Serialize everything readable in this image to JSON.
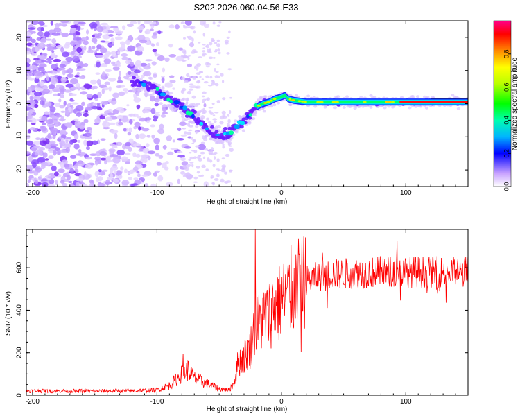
{
  "figure_title": "S202.2026.060.04.56.E33",
  "chart_data": [
    {
      "type": "heatmap",
      "name": "spectrogram",
      "xlabel": "Height of straight line (km)",
      "ylabel": "Frequency (Hz)",
      "xlim": [
        -205,
        150
      ],
      "ylim": [
        -25,
        25
      ],
      "xticks": [
        -200,
        -100,
        0,
        100
      ],
      "yticks": [
        -20,
        -10,
        0,
        10,
        20
      ],
      "colorbar": {
        "label": "Normalized spectral amplitude",
        "ticks": [
          "0.0",
          "0.2",
          "0.4",
          "0.6",
          "0.8"
        ],
        "range": [
          0,
          1
        ]
      },
      "ridge": {
        "x": [
          -118,
          -110,
          -100,
          -90,
          -80,
          -70,
          -60,
          -55,
          -48,
          -42,
          -36,
          -30,
          -24,
          -20,
          -15,
          -10,
          -5,
          0,
          3,
          5,
          10,
          20,
          40,
          60,
          80,
          100,
          120,
          150
        ],
        "y": [
          6,
          6,
          4,
          1,
          -1,
          -4,
          -7,
          -9,
          -10,
          -9,
          -7,
          -5,
          -3,
          -1,
          0,
          0.5,
          1.5,
          2,
          2.5,
          1.5,
          1,
          0.5,
          0.5,
          0.5,
          0.5,
          0.5,
          0.5,
          0.5
        ]
      },
      "noise_region": {
        "x_start": -205,
        "x_end": -50,
        "freq_range": [
          -25,
          25
        ]
      }
    },
    {
      "type": "line",
      "name": "snr",
      "xlabel": "Height of straight line (km)",
      "ylabel": "SNR (10 * v/v)",
      "xlim": [
        -205,
        150
      ],
      "ylim": [
        0,
        780
      ],
      "xticks": [
        -200,
        -100,
        0,
        100
      ],
      "yticks": [
        0,
        200,
        400,
        600
      ],
      "series": [
        {
          "name": "SNR",
          "color": "#ff0000",
          "envelope": {
            "x": [
              -205,
              -120,
              -100,
              -90,
              -80,
              -75,
              -70,
              -60,
              -50,
              -42,
              -38,
              -35,
              -30,
              -25,
              -22,
              -20,
              -15,
              -10,
              0,
              10,
              20,
              30,
              40,
              60,
              80,
              100,
              120,
              150
            ],
            "y": [
              20,
              20,
              25,
              45,
              100,
              120,
              80,
              55,
              30,
              25,
              60,
              150,
              180,
              220,
              300,
              330,
              360,
              390,
              440,
              500,
              540,
              560,
              570,
              575,
              580,
              580,
              580,
              580
            ]
          },
          "spikes": [
            {
              "x": -21,
              "y": 780
            },
            {
              "x": -79,
              "y": 195
            },
            {
              "x": 93,
              "y": 725
            },
            {
              "x": 33,
              "y": 670
            }
          ]
        }
      ]
    }
  ]
}
